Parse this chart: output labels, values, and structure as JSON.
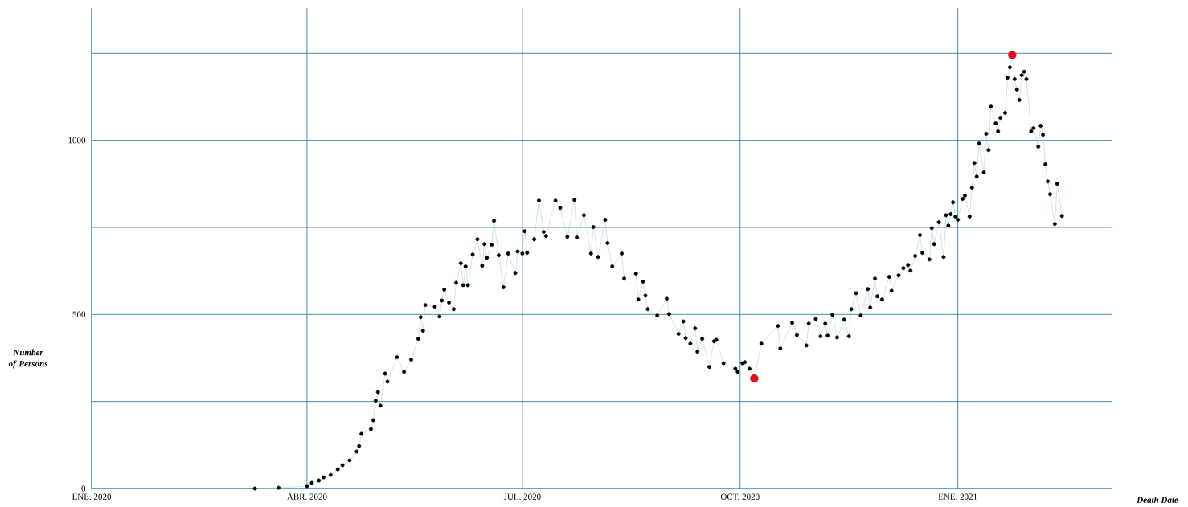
{
  "chart_data": {
    "type": "line",
    "xlabel": "Death Date",
    "ylabel": "Number of Persons",
    "xlim": [
      "2020-01-01",
      "2021-03-07"
    ],
    "ylim": [
      0,
      1380
    ],
    "xticks": [
      {
        "value": "2020-01-01",
        "label": "ENE. 2020"
      },
      {
        "value": "2020-04-01",
        "label": "ABR. 2020"
      },
      {
        "value": "2020-07-01",
        "label": "JUL. 2020"
      },
      {
        "value": "2020-10-01",
        "label": "OCT. 2020"
      },
      {
        "value": "2021-01-01",
        "label": "ENE. 2021"
      }
    ],
    "yticks": [
      0,
      {
        "value": 250,
        "label": null
      },
      500,
      {
        "value": 750,
        "label": null
      },
      1000,
      {
        "value": 1250,
        "label": null
      }
    ],
    "grid": true,
    "marker": "circle",
    "line_style": "solid",
    "series": [
      {
        "color": "#000000",
        "x": [
          "2020-03-10",
          "2020-03-20",
          "2020-04-01",
          "2020-04-03",
          "2020-04-06",
          "2020-04-08",
          "2020-04-11",
          "2020-04-14",
          "2020-04-16",
          "2020-04-19",
          "2020-04-22",
          "2020-04-23",
          "2020-04-24",
          "2020-04-28",
          "2020-04-29",
          "2020-04-30",
          "2020-05-01",
          "2020-05-02",
          "2020-05-04",
          "2020-05-05",
          "2020-05-09",
          "2020-05-12",
          "2020-05-15",
          "2020-05-18",
          "2020-05-19",
          "2020-05-20",
          "2020-05-21",
          "2020-05-25",
          "2020-05-27",
          "2020-05-28",
          "2020-05-29",
          "2020-05-31",
          "2020-06-02",
          "2020-06-03",
          "2020-06-05",
          "2020-06-06",
          "2020-06-07",
          "2020-06-08",
          "2020-06-10",
          "2020-06-12",
          "2020-06-14",
          "2020-06-15",
          "2020-06-16",
          "2020-06-18",
          "2020-06-19",
          "2020-06-21",
          "2020-06-23",
          "2020-06-25",
          "2020-06-28",
          "2020-06-29",
          "2020-07-01",
          "2020-07-02",
          "2020-07-03",
          "2020-07-06",
          "2020-07-08",
          "2020-07-10",
          "2020-07-11",
          "2020-07-15",
          "2020-07-17",
          "2020-07-20",
          "2020-07-23",
          "2020-07-24",
          "2020-07-27",
          "2020-07-30",
          "2020-07-31",
          "2020-08-02",
          "2020-08-05",
          "2020-08-06",
          "2020-08-08",
          "2020-08-12",
          "2020-08-13",
          "2020-08-18",
          "2020-08-19",
          "2020-08-21",
          "2020-08-22",
          "2020-08-23",
          "2020-08-27",
          "2020-08-31",
          "2020-09-01",
          "2020-09-05",
          "2020-09-07",
          "2020-09-08",
          "2020-09-10",
          "2020-09-12",
          "2020-09-13",
          "2020-09-15",
          "2020-09-18",
          "2020-09-20",
          "2020-09-21",
          "2020-09-24",
          "2020-09-29",
          "2020-09-30",
          "2020-10-02",
          "2020-10-03",
          "2020-10-05",
          "2020-10-07",
          "2020-10-10",
          "2020-10-17",
          "2020-10-18",
          "2020-10-23",
          "2020-10-25",
          "2020-10-29",
          "2020-10-30",
          "2020-11-02",
          "2020-11-04",
          "2020-11-06",
          "2020-11-07",
          "2020-11-09",
          "2020-11-11",
          "2020-11-14",
          "2020-11-16",
          "2020-11-17",
          "2020-11-19",
          "2020-11-21",
          "2020-11-24",
          "2020-11-25",
          "2020-11-27",
          "2020-11-28",
          "2020-11-30",
          "2020-12-03",
          "2020-12-04",
          "2020-12-07",
          "2020-12-09",
          "2020-12-11",
          "2020-12-12",
          "2020-12-14",
          "2020-12-16",
          "2020-12-17",
          "2020-12-20",
          "2020-12-21",
          "2020-12-22",
          "2020-12-24",
          "2020-12-26",
          "2020-12-27",
          "2020-12-28",
          "2020-12-29",
          "2020-12-30",
          "2020-12-31",
          "2021-01-01",
          "2021-01-03",
          "2021-01-04",
          "2021-01-06",
          "2021-01-07",
          "2021-01-08",
          "2021-01-09",
          "2021-01-10",
          "2021-01-12",
          "2021-01-13",
          "2021-01-14",
          "2021-01-15",
          "2021-01-17",
          "2021-01-18",
          "2021-01-19",
          "2021-01-21",
          "2021-01-22",
          "2021-01-23",
          "2021-01-24",
          "2021-01-25",
          "2021-01-26",
          "2021-01-27",
          "2021-01-28",
          "2021-01-29",
          "2021-01-30",
          "2021-02-01",
          "2021-02-02",
          "2021-02-04",
          "2021-02-05",
          "2021-02-06",
          "2021-02-07",
          "2021-02-08",
          "2021-02-09",
          "2021-02-11",
          "2021-02-12",
          "2021-02-14"
        ],
        "values": [
          0,
          2,
          7,
          16,
          23,
          32,
          39,
          55,
          67,
          81,
          106,
          122,
          157,
          171,
          196,
          252,
          277,
          238,
          330,
          307,
          377,
          335,
          370,
          430,
          492,
          453,
          527,
          522,
          494,
          540,
          571,
          534,
          515,
          591,
          647,
          584,
          638,
          584,
          672,
          716,
          640,
          702,
          663,
          700,
          769,
          670,
          578,
          675,
          619,
          681,
          675,
          739,
          677,
          716,
          827,
          737,
          725,
          827,
          806,
          723,
          829,
          721,
          785,
          675,
          751,
          665,
          772,
          705,
          638,
          675,
          603,
          617,
          543,
          594,
          554,
          515,
          497,
          545,
          501,
          444,
          480,
          432,
          416,
          460,
          393,
          430,
          349,
          423,
          427,
          360,
          344,
          335,
          360,
          363,
          344,
          316,
          416,
          467,
          402,
          476,
          441,
          411,
          474,
          487,
          437,
          474,
          439,
          499,
          434,
          485,
          437,
          515,
          561,
          497,
          573,
          520,
          603,
          552,
          543,
          608,
          568,
          612,
          633,
          642,
          626,
          668,
          728,
          677,
          658,
          748,
          702,
          765,
          665,
          785,
          755,
          788,
          822,
          781,
          772,
          832,
          841,
          781,
          864,
          935,
          896,
          991,
          908,
          1019,
          972,
          1097,
          1049,
          1026,
          1065,
          1079,
          1180,
          1210,
          1245,
          1176,
          1146,
          1116,
          1187,
          1197,
          1176,
          1026,
          1035,
          982,
          1042,
          1016,
          931,
          882,
          845,
          760,
          875,
          783
        ]
      },
      {
        "type": "scatter",
        "color": "#e3101c",
        "x": [
          "2020-10-07",
          "2021-01-24"
        ],
        "values": [
          316,
          1245
        ]
      }
    ]
  }
}
